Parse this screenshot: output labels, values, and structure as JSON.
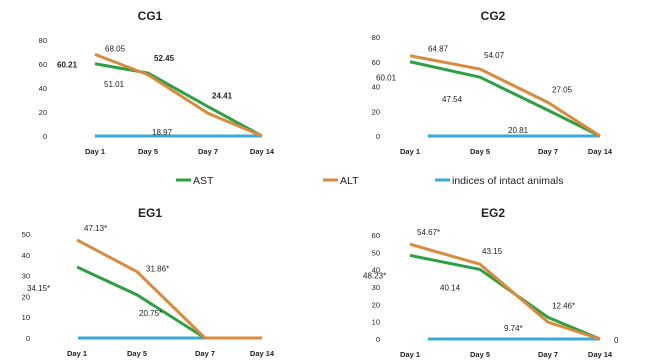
{
  "legend": [
    {
      "name": "AST",
      "color": "#2ea043"
    },
    {
      "name": "ALT",
      "color": "#d98a3d"
    },
    {
      "name": "indices of intact animals",
      "color": "#3aa8d8"
    }
  ],
  "chart_data": [
    {
      "type": "line",
      "title": "CG1",
      "categories": [
        "Day 1",
        "Day 5",
        "Day 7",
        "Day 14"
      ],
      "ylim": [
        0,
        80
      ],
      "yticks": [
        0,
        20,
        40,
        60,
        80
      ],
      "grid": false,
      "series": [
        {
          "name": "AST",
          "values": [
            60.21,
            52.45,
            24.41,
            0
          ],
          "labels": [
            "60.21",
            "52.45",
            "24.41",
            null
          ]
        },
        {
          "name": "ALT",
          "values": [
            68.05,
            51.01,
            18.97,
            0
          ],
          "labels": [
            "68.05",
            "51.01",
            "18.97",
            null
          ]
        },
        {
          "name": "indices of intact animals",
          "values": [
            0,
            0,
            0,
            0
          ],
          "labels": [
            null,
            null,
            null,
            null
          ]
        }
      ]
    },
    {
      "type": "line",
      "title": "CG2",
      "categories": [
        "Day 1",
        "Day 5",
        "Day 7",
        "Day 14"
      ],
      "ylim": [
        0,
        80
      ],
      "yticks": [
        0,
        20,
        40,
        60,
        80
      ],
      "grid": false,
      "series": [
        {
          "name": "AST",
          "values": [
            60.01,
            47.54,
            20.81,
            0
          ],
          "labels": [
            "60.01",
            "47.54",
            "20.81",
            null
          ]
        },
        {
          "name": "ALT",
          "values": [
            64.87,
            54.07,
            27.05,
            0
          ],
          "labels": [
            "64.87",
            "54.07",
            "27.05",
            null
          ]
        },
        {
          "name": "indices of intact animals",
          "values": [
            0,
            0,
            0,
            0
          ],
          "labels": [
            null,
            null,
            null,
            null
          ]
        }
      ]
    },
    {
      "type": "line",
      "title": "EG1",
      "categories": [
        "Day 1",
        "Day 5",
        "Day 7",
        "Day 14"
      ],
      "ylim": [
        0,
        50
      ],
      "yticks": [
        0,
        10,
        20,
        30,
        40,
        50
      ],
      "grid": false,
      "series": [
        {
          "name": "AST",
          "values": [
            34.15,
            20.75,
            0,
            0
          ],
          "labels": [
            "34.15*",
            "20.75*",
            null,
            null
          ]
        },
        {
          "name": "ALT",
          "values": [
            47.13,
            31.86,
            0,
            0
          ],
          "labels": [
            "47.13*",
            "31.86*",
            null,
            null
          ]
        },
        {
          "name": "indices of intact animals",
          "values": [
            0,
            0,
            0,
            0
          ],
          "labels": [
            null,
            null,
            null,
            null
          ]
        }
      ]
    },
    {
      "type": "line",
      "title": "EG2",
      "categories": [
        "Day 1",
        "Day 5",
        "Day 7",
        "Day 14"
      ],
      "ylim": [
        0,
        60
      ],
      "yticks": [
        0,
        10,
        20,
        30,
        40,
        50,
        60
      ],
      "grid": false,
      "series": [
        {
          "name": "AST",
          "values": [
            48.23,
            40.14,
            12.46,
            0
          ],
          "labels": [
            "48.23*",
            "40.14",
            "12.46*",
            null
          ]
        },
        {
          "name": "ALT",
          "values": [
            54.67,
            43.15,
            9.74,
            0
          ],
          "labels": [
            "54.67*",
            "43.15",
            "9.74*",
            "0"
          ]
        },
        {
          "name": "indices of intact animals",
          "values": [
            0,
            0,
            0,
            0
          ],
          "labels": [
            null,
            null,
            null,
            null
          ]
        }
      ]
    }
  ]
}
